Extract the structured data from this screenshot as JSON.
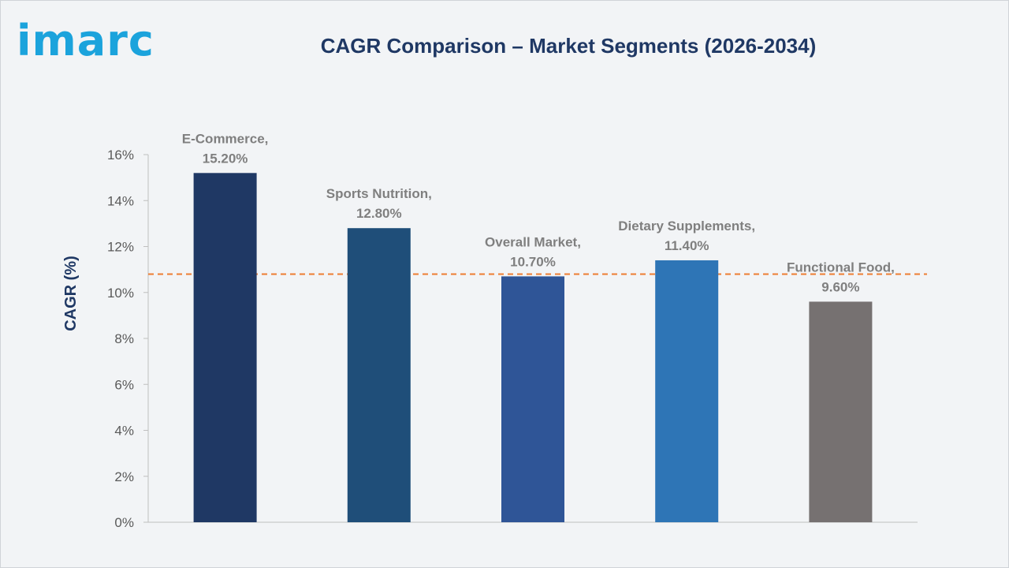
{
  "logo": {
    "text": "imarc"
  },
  "chart_data": {
    "type": "bar",
    "title": "CAGR Comparison – Market Segments (2026-2034)",
    "ylabel": "CAGR (%)",
    "xlabel": "",
    "categories": [
      "E-Commerce",
      "Sports Nutrition",
      "Overall Market",
      "Dietary Supplements",
      "Functional Food"
    ],
    "values": [
      15.2,
      12.8,
      10.7,
      11.4,
      9.6
    ],
    "data_labels": [
      [
        "E-Commerce,",
        "15.20%"
      ],
      [
        "Sports Nutrition,",
        "12.80%"
      ],
      [
        "Overall Market,",
        "10.70%"
      ],
      [
        "Dietary Supplements,",
        "11.40%"
      ],
      [
        "Functional Food,",
        "9.60%"
      ]
    ],
    "bar_colors": [
      "#1f3864",
      "#1f4e79",
      "#2f5597",
      "#2e75b6",
      "#767171"
    ],
    "ylim": [
      0,
      16
    ],
    "yticks": [
      "0%",
      "2%",
      "4%",
      "6%",
      "8%",
      "10%",
      "12%",
      "14%",
      "16%"
    ],
    "reference_line": {
      "value": 10.8,
      "color": "#ed7d31",
      "style": "dashed"
    },
    "grid": false,
    "legend": "none"
  }
}
